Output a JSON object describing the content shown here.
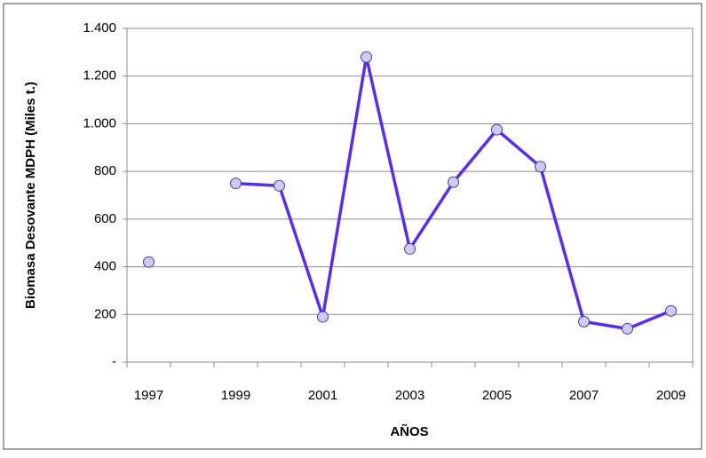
{
  "chart_data": {
    "type": "line",
    "x_label": "AÑOS",
    "y_label": "Biomasa Desovante  MDPH (Miles t.)",
    "categories": [
      "1997",
      null,
      "1999",
      null,
      "2001",
      null,
      "2003",
      null,
      "2005",
      null,
      "2007",
      null,
      "2009"
    ],
    "series": [
      {
        "name": "Biomasa",
        "color": "#5a2de8",
        "values": [
          420,
          null,
          750,
          740,
          190,
          1280,
          475,
          755,
          975,
          820,
          170,
          140,
          215
        ]
      }
    ],
    "ylim": [
      0,
      1400
    ],
    "yticks": [
      {
        "value": 0,
        "label": "-"
      },
      200,
      400,
      600,
      800,
      {
        "value": 1000,
        "label": "1.000"
      },
      {
        "value": 1200,
        "label": "1.200"
      },
      {
        "value": 1400,
        "label": "1.400"
      }
    ],
    "grid": true
  }
}
